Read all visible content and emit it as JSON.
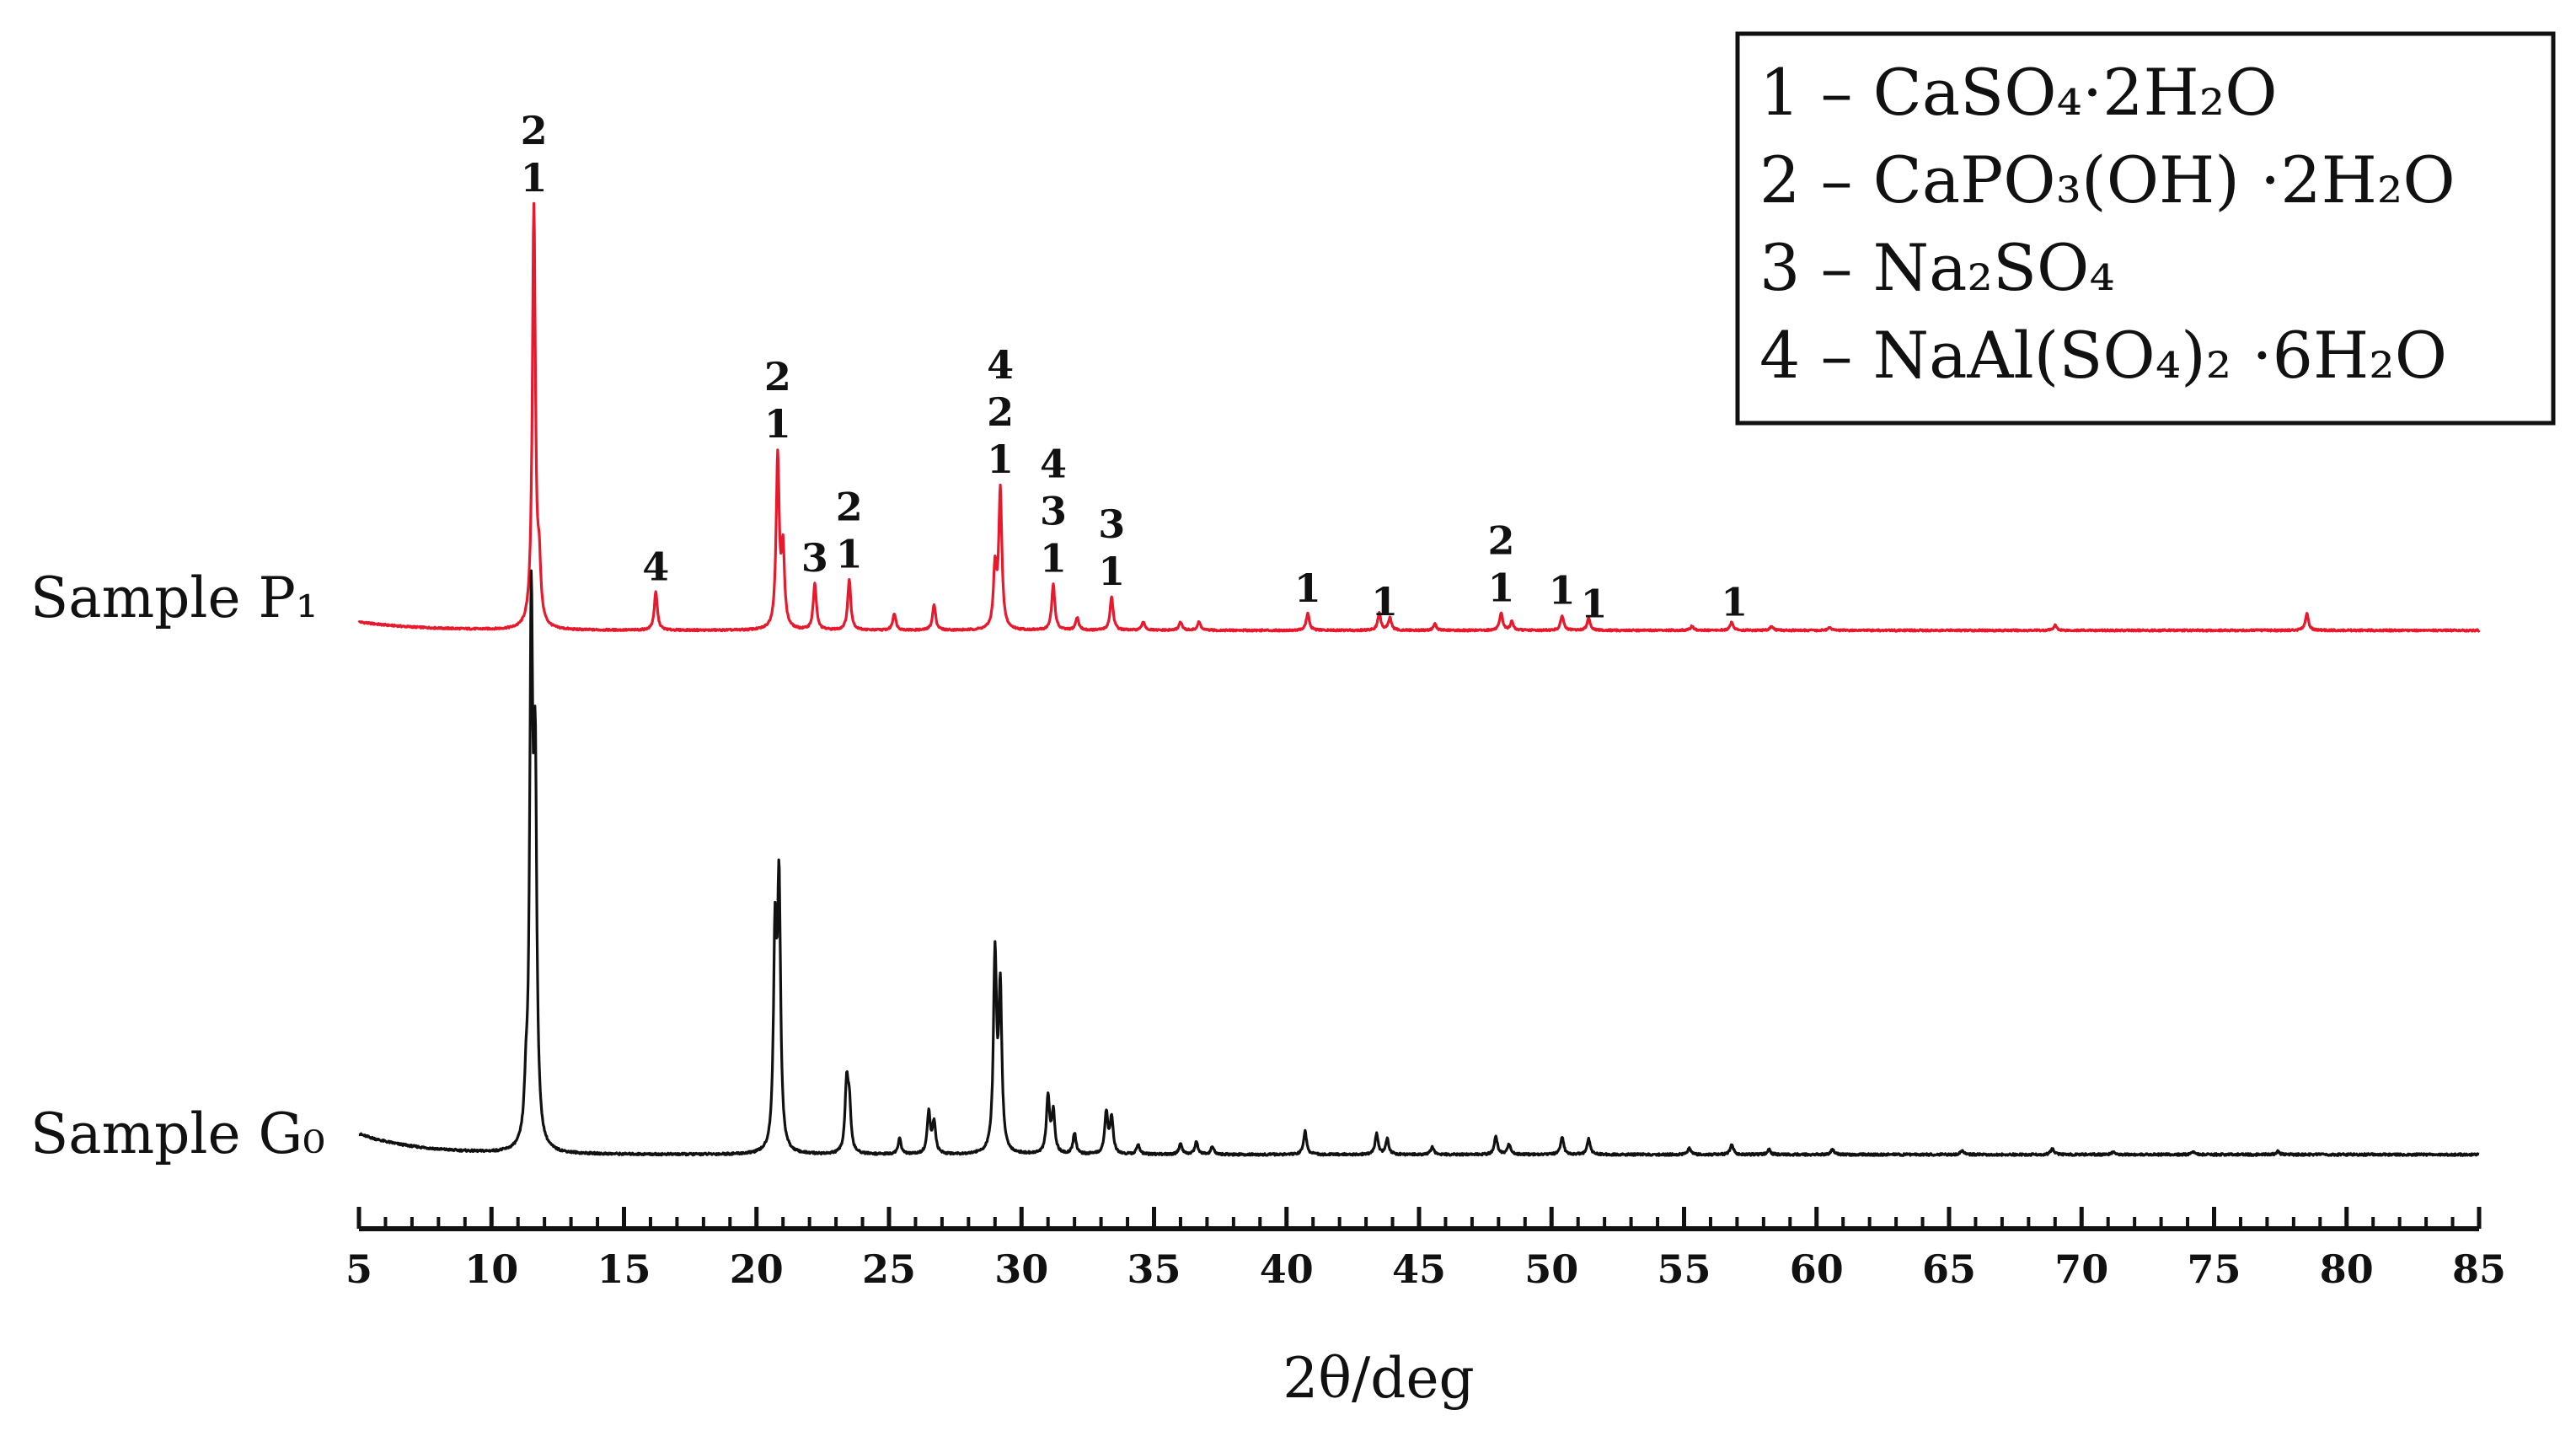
{
  "chart_data": {
    "type": "line",
    "xlabel": "2θ/deg",
    "ylabel": "",
    "xlim": [
      5,
      85
    ],
    "x_ticks": [
      5,
      10,
      15,
      20,
      25,
      30,
      35,
      40,
      45,
      50,
      55,
      60,
      65,
      70,
      75,
      80,
      85
    ],
    "y_axis": "none",
    "grid": false,
    "legend_position": "top-right",
    "legend": [
      {
        "num": "1",
        "text": "1 – CaSO₄·2H₂O"
      },
      {
        "num": "2",
        "text": "2 – CaPO₃(OH) ·2H₂O"
      },
      {
        "num": "3",
        "text": "3 – Na₂SO₄"
      },
      {
        "num": "4",
        "text": "4 – NaAl(SO₄)₂ ·6H₂O"
      }
    ],
    "series": [
      {
        "name": "Sample P₁",
        "label": "Sample P₁",
        "color": "#e8192c",
        "baseline_start": 0.02,
        "peaks": [
          {
            "x": 11.6,
            "y": 1.0
          },
          {
            "x": 11.8,
            "y": 0.12
          },
          {
            "x": 16.2,
            "y": 0.09
          },
          {
            "x": 20.8,
            "y": 0.41
          },
          {
            "x": 21.0,
            "y": 0.18
          },
          {
            "x": 22.2,
            "y": 0.11
          },
          {
            "x": 23.5,
            "y": 0.12
          },
          {
            "x": 25.2,
            "y": 0.04
          },
          {
            "x": 26.7,
            "y": 0.06
          },
          {
            "x": 29.2,
            "y": 0.33
          },
          {
            "x": 29.0,
            "y": 0.14
          },
          {
            "x": 31.2,
            "y": 0.11
          },
          {
            "x": 32.1,
            "y": 0.03
          },
          {
            "x": 33.4,
            "y": 0.08
          },
          {
            "x": 34.6,
            "y": 0.02
          },
          {
            "x": 36.0,
            "y": 0.02
          },
          {
            "x": 36.7,
            "y": 0.02
          },
          {
            "x": 40.8,
            "y": 0.04
          },
          {
            "x": 43.5,
            "y": 0.04
          },
          {
            "x": 43.9,
            "y": 0.03
          },
          {
            "x": 45.6,
            "y": 0.015
          },
          {
            "x": 48.1,
            "y": 0.04
          },
          {
            "x": 48.5,
            "y": 0.02
          },
          {
            "x": 50.4,
            "y": 0.035
          },
          {
            "x": 51.4,
            "y": 0.03
          },
          {
            "x": 55.3,
            "y": 0.01
          },
          {
            "x": 56.8,
            "y": 0.02
          },
          {
            "x": 58.3,
            "y": 0.01
          },
          {
            "x": 60.5,
            "y": 0.008
          },
          {
            "x": 69.0,
            "y": 0.012
          },
          {
            "x": 78.5,
            "y": 0.04
          }
        ],
        "peak_labels": [
          {
            "x": 11.6,
            "lines": [
              "2",
              "1"
            ]
          },
          {
            "x": 16.2,
            "lines": [
              "4"
            ]
          },
          {
            "x": 20.8,
            "lines": [
              "2",
              "1"
            ]
          },
          {
            "x": 22.2,
            "lines": [
              "3"
            ]
          },
          {
            "x": 23.5,
            "lines": [
              "2",
              "1"
            ]
          },
          {
            "x": 29.2,
            "lines": [
              "4",
              "2",
              "1"
            ]
          },
          {
            "x": 31.2,
            "lines": [
              "4",
              "3",
              "1"
            ]
          },
          {
            "x": 33.4,
            "lines": [
              "3",
              "1"
            ]
          },
          {
            "x": 40.8,
            "lines": [
              "1"
            ]
          },
          {
            "x": 43.7,
            "lines": [
              "1"
            ]
          },
          {
            "x": 48.1,
            "lines": [
              "2",
              "1"
            ]
          },
          {
            "x": 50.4,
            "lines": [
              "1"
            ]
          },
          {
            "x": 51.6,
            "lines": [
              "1"
            ]
          },
          {
            "x": 56.9,
            "lines": [
              "1"
            ]
          }
        ]
      },
      {
        "name": "Sample G₀",
        "label": "Sample G₀",
        "color": "#111111",
        "baseline_start": 0.04,
        "peaks": [
          {
            "x": 11.5,
            "y": 1.0
          },
          {
            "x": 11.65,
            "y": 0.68
          },
          {
            "x": 11.3,
            "y": 0.08
          },
          {
            "x": 20.7,
            "y": 0.4
          },
          {
            "x": 20.85,
            "y": 0.5
          },
          {
            "x": 23.4,
            "y": 0.13
          },
          {
            "x": 23.5,
            "y": 0.09
          },
          {
            "x": 25.4,
            "y": 0.03
          },
          {
            "x": 26.5,
            "y": 0.08
          },
          {
            "x": 26.7,
            "y": 0.06
          },
          {
            "x": 29.0,
            "y": 0.38
          },
          {
            "x": 29.2,
            "y": 0.31
          },
          {
            "x": 31.0,
            "y": 0.11
          },
          {
            "x": 31.2,
            "y": 0.08
          },
          {
            "x": 32.0,
            "y": 0.04
          },
          {
            "x": 33.2,
            "y": 0.08
          },
          {
            "x": 33.4,
            "y": 0.07
          },
          {
            "x": 34.4,
            "y": 0.02
          },
          {
            "x": 36.0,
            "y": 0.02
          },
          {
            "x": 36.6,
            "y": 0.025
          },
          {
            "x": 37.2,
            "y": 0.015
          },
          {
            "x": 40.7,
            "y": 0.045
          },
          {
            "x": 43.4,
            "y": 0.04
          },
          {
            "x": 43.8,
            "y": 0.03
          },
          {
            "x": 45.5,
            "y": 0.015
          },
          {
            "x": 47.9,
            "y": 0.035
          },
          {
            "x": 48.4,
            "y": 0.02
          },
          {
            "x": 50.4,
            "y": 0.035
          },
          {
            "x": 51.4,
            "y": 0.03
          },
          {
            "x": 55.2,
            "y": 0.012
          },
          {
            "x": 56.8,
            "y": 0.02
          },
          {
            "x": 58.2,
            "y": 0.01
          },
          {
            "x": 60.6,
            "y": 0.01
          },
          {
            "x": 65.5,
            "y": 0.008
          },
          {
            "x": 68.9,
            "y": 0.012
          },
          {
            "x": 71.2,
            "y": 0.006
          },
          {
            "x": 74.2,
            "y": 0.006
          },
          {
            "x": 77.4,
            "y": 0.006
          }
        ],
        "peak_labels": []
      }
    ]
  }
}
